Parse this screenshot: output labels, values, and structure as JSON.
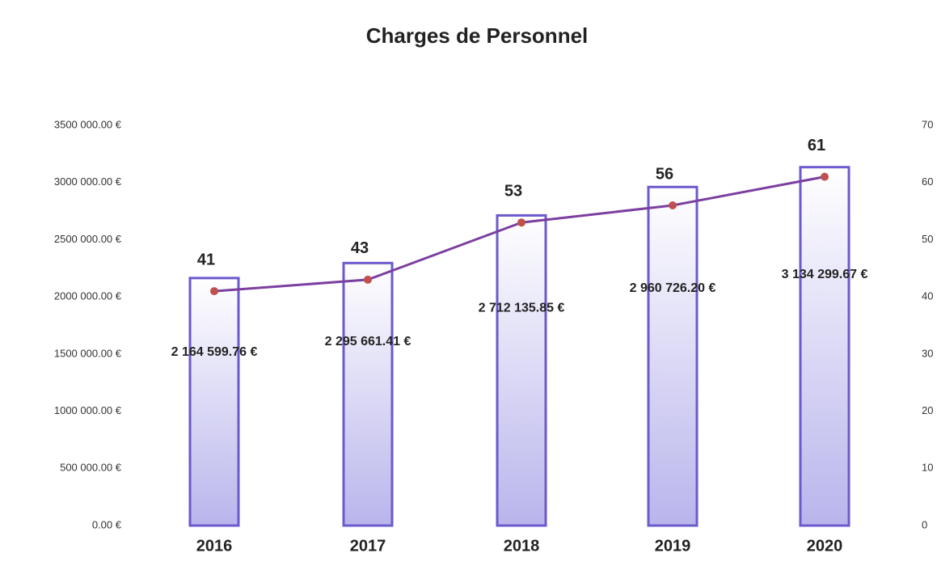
{
  "chart_data": {
    "type": "bar_line",
    "title": "Charges de Personnel",
    "categories": [
      "2016",
      "2017",
      "2018",
      "2019",
      "2020"
    ],
    "series": [
      {
        "type": "bar",
        "color": "#6a5acd",
        "values": [
          2164599.76,
          2295661.41,
          2712135.85,
          2960726.2,
          3134299.67
        ],
        "value_labels": [
          "2 164 599.76 €",
          "2 295 661.41 €",
          "2 712 135.85 €",
          "2 960 726.20 €",
          "3 134 299.67 €"
        ]
      },
      {
        "type": "line",
        "axis": "y2",
        "color": "#7b3fa0",
        "marker_color": "#c0504d",
        "values": [
          41,
          43,
          53,
          56,
          61
        ]
      }
    ],
    "ylim": [
      0,
      3500000
    ],
    "yticks": [
      {
        "value": 0,
        "label": "0.00 €"
      },
      {
        "value": 500000,
        "label": "500 000.00 €"
      },
      {
        "value": 1000000,
        "label": "1000 000.00 €"
      },
      {
        "value": 1500000,
        "label": "1500 000.00 €"
      },
      {
        "value": 2000000,
        "label": "2000 000.00 €"
      },
      {
        "value": 2500000,
        "label": "2500 000.00 €"
      },
      {
        "value": 3000000,
        "label": "3000 000.00 €"
      },
      {
        "value": 3500000,
        "label": "3500 000.00 €"
      }
    ],
    "y2lim": [
      0,
      70
    ],
    "y2ticks": [
      0,
      10,
      20,
      30,
      40,
      50,
      60,
      70
    ],
    "grid": false
  }
}
